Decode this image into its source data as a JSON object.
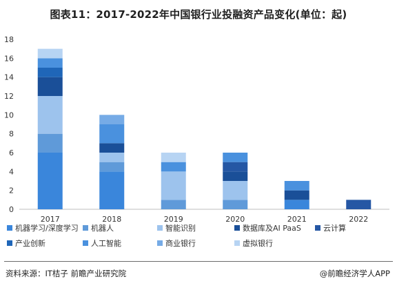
{
  "title": "图表11：2017-2022年中国银行业投融资产品变化(单位：起)",
  "source": "资料来源：IT桔子 前瞻产业研究院",
  "brand": "@前瞻经济学人APP",
  "chart_data": {
    "type": "bar",
    "stacked": true,
    "title": "图表11：2017-2022年中国银行业投融资产品变化(单位：起)",
    "xlabel": "",
    "ylabel": "",
    "ylim": [
      0,
      18
    ],
    "y_ticks": [
      "0",
      "2",
      "4",
      "6",
      "8",
      "10",
      "12",
      "14",
      "16",
      "18"
    ],
    "categories": [
      "2017",
      "2018",
      "2019",
      "2020",
      "2021",
      "2022"
    ],
    "legend_position": "bottom",
    "grid": false,
    "series": [
      {
        "name": "机器学习/深度学习",
        "color": "#3a86db",
        "values": [
          6,
          4,
          0,
          0,
          1,
          0
        ]
      },
      {
        "name": "机器人",
        "color": "#5f9ad9",
        "values": [
          2,
          1,
          1,
          1,
          0,
          0
        ]
      },
      {
        "name": "智能识别",
        "color": "#9dc3ed",
        "values": [
          4,
          1,
          3,
          2,
          0,
          0
        ]
      },
      {
        "name": "数据库及AI PaaS",
        "color": "#1a4f98",
        "values": [
          2,
          1,
          0,
          1,
          1,
          0
        ]
      },
      {
        "name": "云计算",
        "color": "#2557a4",
        "values": [
          0,
          0,
          0,
          1,
          0,
          1
        ]
      },
      {
        "name": "产业创新",
        "color": "#1f66b8",
        "values": [
          1,
          0,
          0,
          0,
          0,
          0
        ]
      },
      {
        "name": "人工智能",
        "color": "#4a91de",
        "values": [
          1,
          2,
          1,
          1,
          1,
          0
        ]
      },
      {
        "name": "商业银行",
        "color": "#76abe6",
        "values": [
          0,
          1,
          0,
          0,
          0,
          0
        ]
      },
      {
        "name": "虚拟银行",
        "color": "#b7d4f3",
        "values": [
          1,
          0,
          1,
          0,
          0,
          0
        ]
      }
    ]
  }
}
